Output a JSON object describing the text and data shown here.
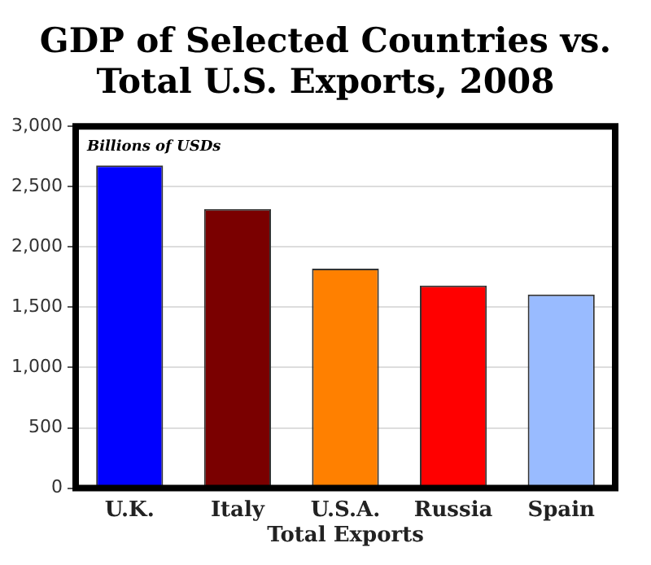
{
  "chart_data": {
    "type": "bar",
    "title": "GDP of Selected Countries vs. Total U.S. Exports, 2008",
    "categories": [
      "U.K.",
      "Italy",
      "U.S.A.\nTotal Exports",
      "Russia",
      "Spain"
    ],
    "values": [
      2675,
      2315,
      1820,
      1680,
      1605
    ],
    "colors": [
      "#0000ff",
      "#7a0000",
      "#ff8000",
      "#ff0000",
      "#99bbff"
    ],
    "ylim": [
      0,
      3000
    ],
    "yticks": [
      {
        "value": 0,
        "label": "0"
      },
      {
        "value": 500,
        "label": "500"
      },
      {
        "value": 1000,
        "label": "1,000"
      },
      {
        "value": 1500,
        "label": "1,500"
      },
      {
        "value": 2000,
        "label": "2,000"
      },
      {
        "value": 2500,
        "label": "2,500"
      },
      {
        "value": 3000,
        "label": "3,000"
      }
    ],
    "grid": "y",
    "legend": false,
    "annotations": [
      "Billions of USDs"
    ]
  }
}
